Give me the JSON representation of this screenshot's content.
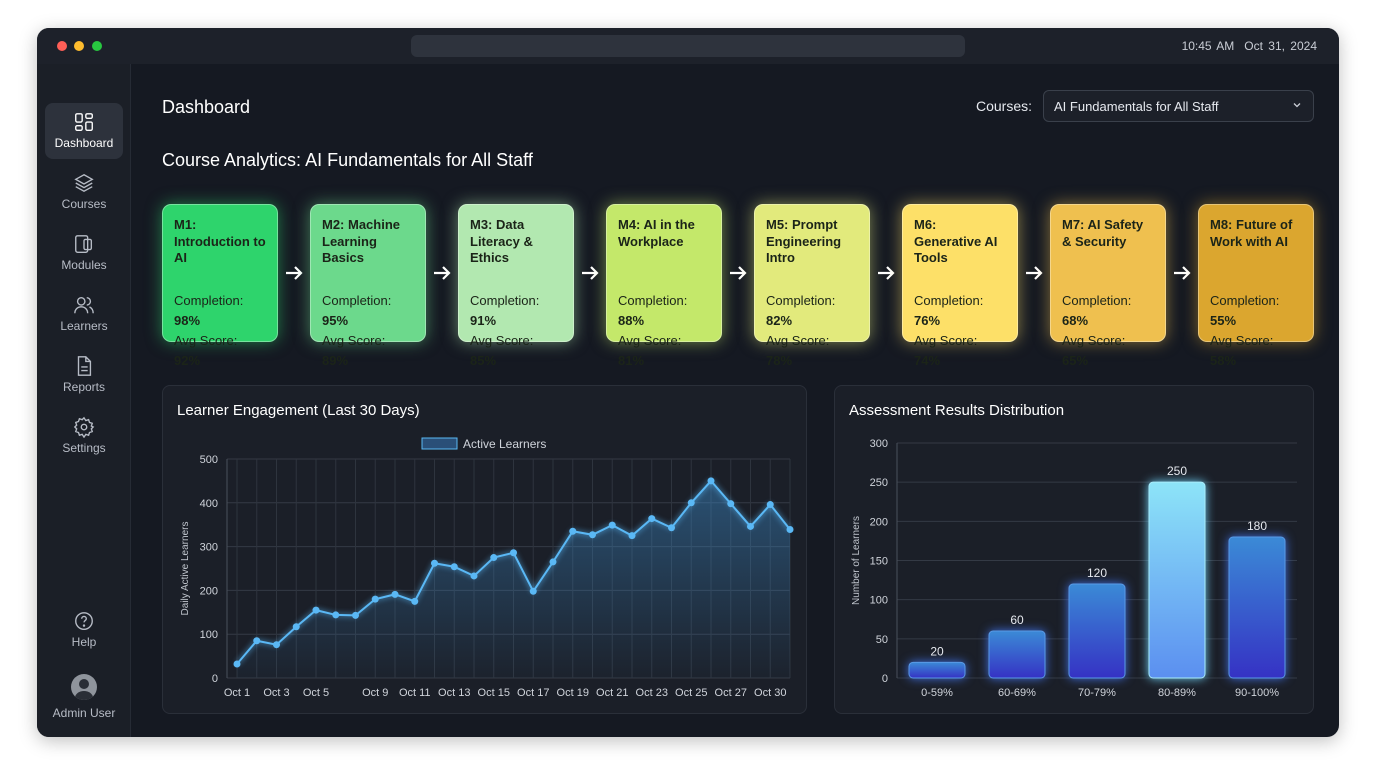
{
  "titlebar": {
    "time": "10:45 AM",
    "date": "Oct 31, 2024"
  },
  "sidebar": {
    "items": [
      {
        "label": "Dashboard",
        "icon": "dashboard-grid-icon",
        "active": true
      },
      {
        "label": "Courses",
        "icon": "layers-icon"
      },
      {
        "label": "Modules",
        "icon": "modules-icon"
      },
      {
        "label": "Learners",
        "icon": "users-icon"
      },
      {
        "label": "Reports",
        "icon": "document-icon"
      },
      {
        "label": "Settings",
        "icon": "gear-icon"
      }
    ],
    "help": {
      "label": "Help",
      "icon": "help-circle-icon"
    },
    "user": {
      "label": "Admin User",
      "icon": "avatar-icon"
    }
  },
  "header": {
    "title": "Dashboard",
    "courses_label": "Courses:",
    "course_selected": "AI Fundamentals for All Staff"
  },
  "analytics_title": "Course Analytics: AI Fundamentals for All Staff",
  "modules": [
    {
      "title": "M1: Introduction to AI",
      "completion": "98%",
      "score": "92%",
      "color": "#2ed46c"
    },
    {
      "title": "M2: Machine Learning Basics",
      "completion": "95%",
      "score": "89%",
      "color": "#6cd98c"
    },
    {
      "title": "M3: Data Literacy & Ethics",
      "completion": "91%",
      "score": "85%",
      "color": "#b2e8b0"
    },
    {
      "title": "M4: AI in the Workplace",
      "completion": "88%",
      "score": "81%",
      "color": "#c4e86a"
    },
    {
      "title": "M5: Prompt Engineering Intro",
      "completion": "82%",
      "score": "78%",
      "color": "#e2ea7c"
    },
    {
      "title": "M6: Generative AI Tools",
      "completion": "76%",
      "score": "74%",
      "color": "#fde068"
    },
    {
      "title": "M7: AI Safety & Security",
      "completion": "68%",
      "score": "65%",
      "color": "#efc04f"
    },
    {
      "title": "M8: Future of Work with AI",
      "completion": "55%",
      "score": "58%",
      "color": "#dba62f"
    }
  ],
  "labels": {
    "completion": "Completion: ",
    "score": "Avg Score: "
  },
  "chart_data": [
    {
      "type": "line",
      "title": "Learner Engagement (Last 30 Days)",
      "ylabel": "Daily Active Learners",
      "legend": "Active Learners",
      "legend_placement": "top",
      "ylim": [
        0,
        500
      ],
      "yticks": [
        0,
        100,
        200,
        300,
        400,
        500
      ],
      "grid": true,
      "color": "#5ab8f5",
      "xtick_labels": [
        "Oct 1",
        "",
        "Oct 3",
        "",
        "Oct 5",
        "",
        "",
        "Oct 9",
        "",
        "Oct 11",
        "",
        "Oct 13",
        "",
        "Oct 15",
        "",
        "Oct 17",
        "",
        "Oct 19",
        "",
        "Oct 21",
        "",
        "Oct 23",
        "",
        "Oct 25",
        "",
        "Oct 27",
        "",
        "Oct 30",
        ""
      ],
      "values": [
        32,
        85,
        76,
        117,
        155,
        144,
        143,
        180,
        191,
        175,
        262,
        254,
        233,
        275,
        286,
        198,
        265,
        335,
        327,
        349,
        325,
        364,
        343,
        400,
        450,
        398,
        346,
        396,
        339
      ]
    },
    {
      "type": "bar",
      "title": "Assessment Results Distribution",
      "ylabel": "Number of Learners",
      "ylim": [
        0,
        300
      ],
      "yticks": [
        0,
        50,
        100,
        150,
        200,
        250,
        300
      ],
      "grid": true,
      "categories": [
        "0-59%",
        "60-69%",
        "70-79%",
        "80-89%",
        "90-100%"
      ],
      "values": [
        20,
        60,
        120,
        250,
        180
      ]
    }
  ]
}
